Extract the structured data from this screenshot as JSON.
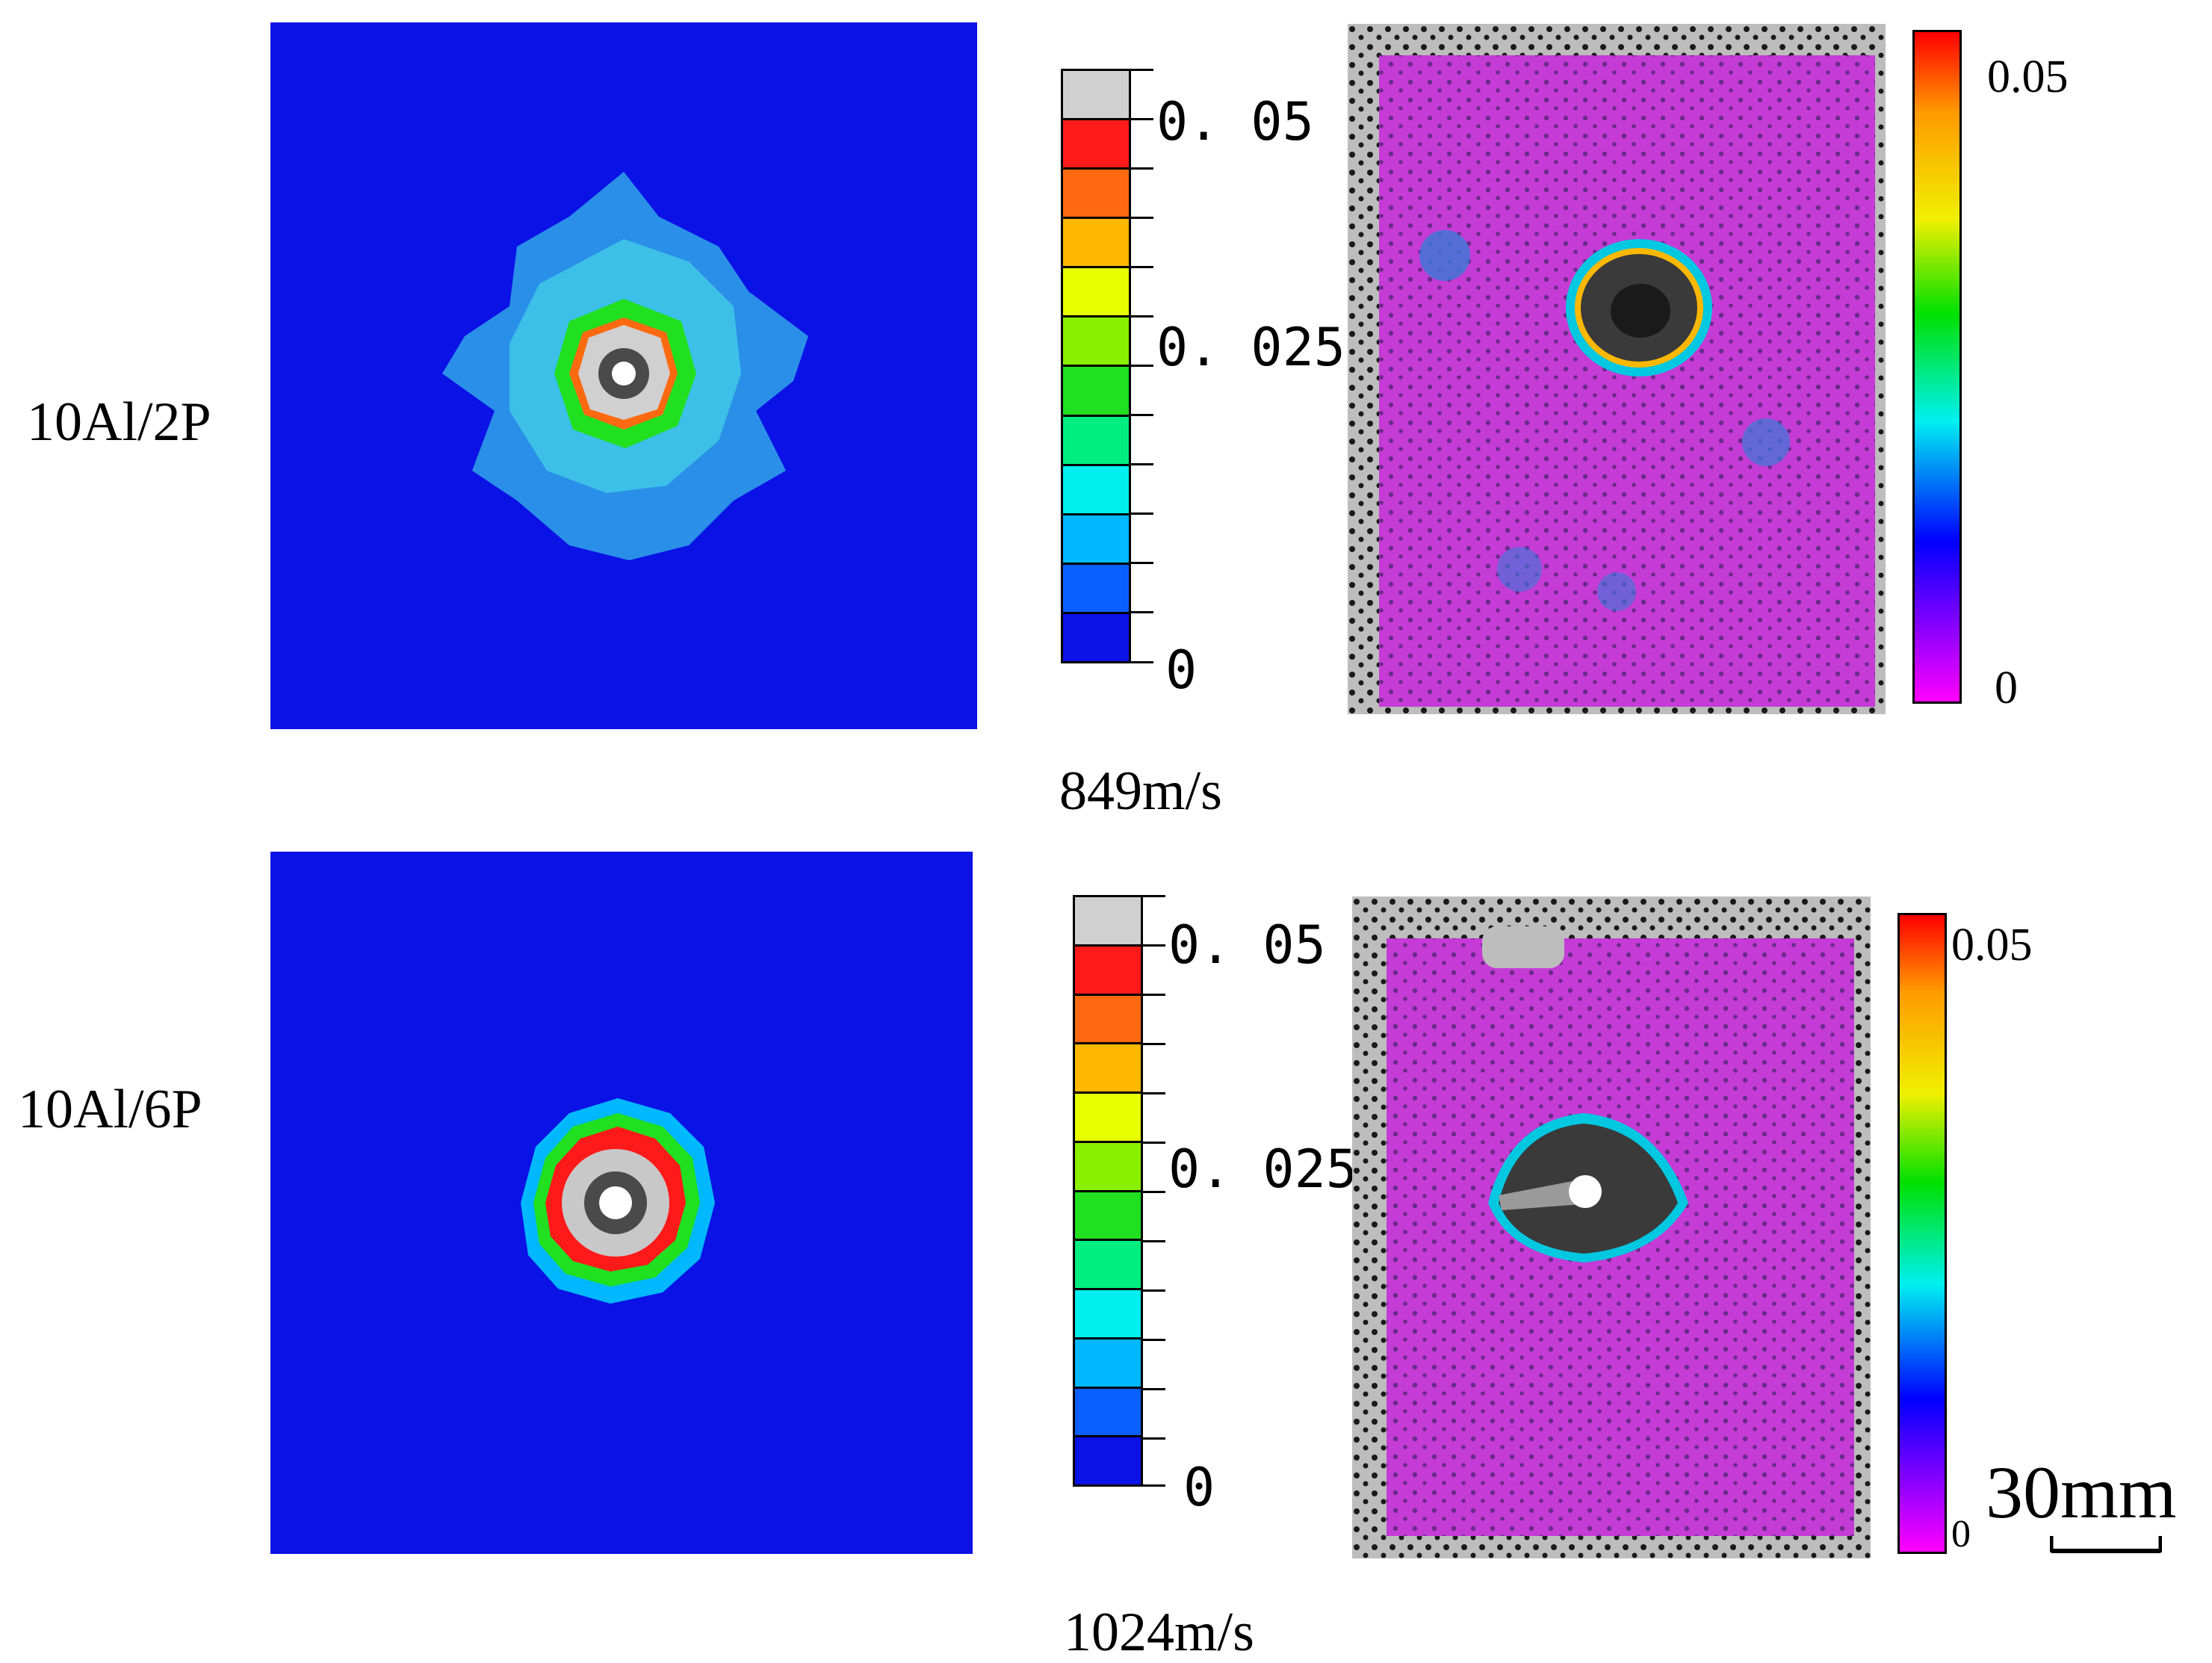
{
  "rows": [
    {
      "label": "10Al/2P",
      "velocity": "849m/s",
      "sim_colorbar": {
        "top_label": "0. 05",
        "mid_label": "0. 025",
        "bottom_label": "0"
      },
      "dic_colorbar": {
        "top_label": "0.05",
        "bottom_label": "0"
      }
    },
    {
      "label": "10Al/6P",
      "velocity": "1024m/s",
      "sim_colorbar": {
        "top_label": "0. 05",
        "mid_label": "0. 025",
        "bottom_label": "0"
      },
      "dic_colorbar": {
        "top_label": "0.05",
        "bottom_label": "0"
      }
    }
  ],
  "scale_bar": {
    "label": "30mm"
  },
  "colors": {
    "sim_background": "#0a12e6",
    "sim_steps_top_to_bottom": [
      "#d0d0d0",
      "#ff1a1a",
      "#ff6a10",
      "#ffb800",
      "#e8ff00",
      "#8af000",
      "#20e020",
      "#00ee80",
      "#00f0f0",
      "#00b8ff",
      "#0a60ff",
      "#0a12e6"
    ],
    "dic_gradient_top_to_bottom": [
      "#ff0000",
      "#ff9a00",
      "#f0f000",
      "#00e000",
      "#00f0f0",
      "#0000ff",
      "#ff00ff"
    ],
    "dic_surface": "#c53bd6"
  },
  "icons": {
    "scale": "scale-bar-icon"
  }
}
